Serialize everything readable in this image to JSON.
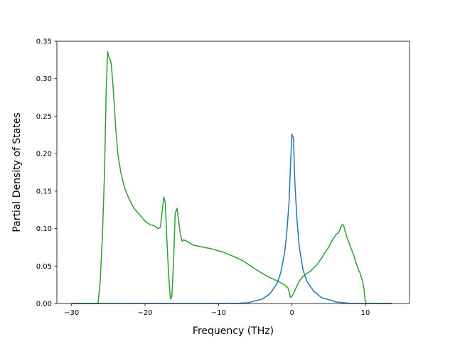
{
  "chart_data": {
    "type": "line",
    "title": "",
    "xlabel": "Frequency (THz)",
    "ylabel": "Partial Density of States",
    "xlim": [
      -32.0,
      16.0
    ],
    "ylim": [
      0.0,
      0.35
    ],
    "grid": false,
    "legend": "none",
    "x_ticks": [
      -30,
      -20,
      -10,
      0,
      10
    ],
    "x_tick_labels": [
      "−30",
      "−20",
      "−10",
      "0",
      "10"
    ],
    "y_ticks": [
      0.0,
      0.05,
      0.1,
      0.15,
      0.2,
      0.25,
      0.3,
      0.35
    ],
    "y_tick_labels": [
      "0.00",
      "0.05",
      "0.10",
      "0.15",
      "0.20",
      "0.25",
      "0.30",
      "0.35"
    ],
    "series": [
      {
        "color": "#1f77b4",
        "x": [
          -30.0,
          -13.0,
          -8.0,
          -6.0,
          -4.0,
          -3.0,
          -2.0,
          -1.5,
          -1.0,
          -0.7,
          -0.4,
          -0.2,
          0.0,
          0.2,
          0.4,
          0.7,
          1.0,
          1.5,
          2.0,
          3.0,
          4.0,
          6.0,
          8.0,
          13.6
        ],
        "y": [
          0.0,
          0.0,
          0.0,
          0.001,
          0.006,
          0.013,
          0.027,
          0.042,
          0.068,
          0.095,
          0.135,
          0.185,
          0.226,
          0.22,
          0.16,
          0.11,
          0.075,
          0.045,
          0.03,
          0.016,
          0.008,
          0.002,
          0.0,
          0.0
        ]
      },
      {
        "color": "#2ca02c",
        "x": [
          -30.0,
          -26.4,
          -26.1,
          -25.8,
          -25.5,
          -25.3,
          -25.1,
          -24.95,
          -24.75,
          -24.6,
          -24.35,
          -24.0,
          -23.7,
          -23.3,
          -22.8,
          -22.2,
          -21.5,
          -20.7,
          -20.0,
          -19.3,
          -18.8,
          -18.2,
          -17.9,
          -17.7,
          -17.45,
          -17.25,
          -17.05,
          -16.8,
          -16.55,
          -16.35,
          -16.1,
          -15.9,
          -15.65,
          -15.45,
          -15.2,
          -14.95,
          -14.75,
          -14.3,
          -13.5,
          -12.5,
          -11.0,
          -9.5,
          -8.0,
          -6.5,
          -5.0,
          -3.5,
          -2.0,
          -1.0,
          -0.5,
          -0.2,
          0.0,
          0.3,
          0.6,
          1.0,
          1.5,
          2.0,
          2.5,
          3.0,
          3.5,
          4.0,
          4.5,
          5.0,
          5.5,
          6.0,
          6.3,
          6.6,
          6.8,
          7.0,
          7.2,
          7.5,
          7.8,
          8.1,
          8.4,
          8.7,
          9.0,
          9.3,
          9.6,
          9.8,
          9.95,
          10.1,
          10.5,
          13.6
        ],
        "y": [
          0.0,
          0.0,
          0.03,
          0.09,
          0.18,
          0.28,
          0.336,
          0.33,
          0.326,
          0.32,
          0.29,
          0.235,
          0.2,
          0.175,
          0.155,
          0.14,
          0.127,
          0.118,
          0.11,
          0.105,
          0.104,
          0.1,
          0.102,
          0.12,
          0.142,
          0.135,
          0.09,
          0.04,
          0.006,
          0.009,
          0.06,
          0.12,
          0.127,
          0.113,
          0.093,
          0.083,
          0.085,
          0.083,
          0.078,
          0.076,
          0.073,
          0.069,
          0.063,
          0.056,
          0.046,
          0.037,
          0.03,
          0.025,
          0.02,
          0.008,
          0.01,
          0.015,
          0.022,
          0.03,
          0.036,
          0.04,
          0.043,
          0.048,
          0.053,
          0.06,
          0.068,
          0.075,
          0.085,
          0.092,
          0.094,
          0.1,
          0.105,
          0.105,
          0.098,
          0.088,
          0.08,
          0.072,
          0.065,
          0.055,
          0.046,
          0.04,
          0.03,
          0.02,
          0.005,
          0.0,
          0.0,
          0.0
        ]
      }
    ]
  }
}
